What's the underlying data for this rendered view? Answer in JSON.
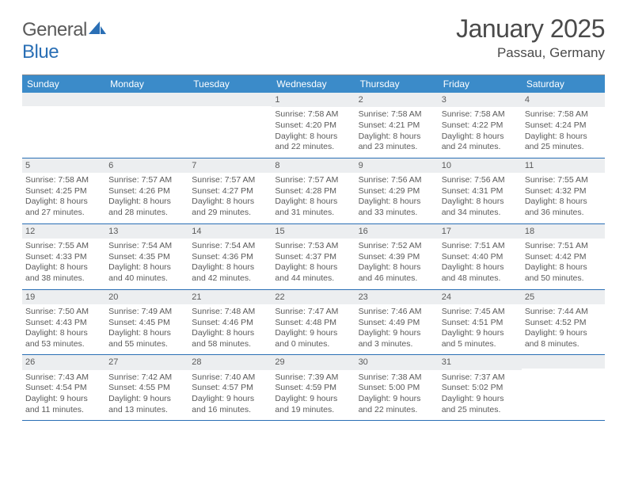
{
  "logo": {
    "text1": "General",
    "text2": "Blue"
  },
  "title": "January 2025",
  "location": "Passau, Germany",
  "colors": {
    "header_bg": "#3b8bc9",
    "header_text": "#ffffff",
    "rule": "#2a6fb5",
    "daynum_bg": "#eceef0",
    "text": "#5a5a5a",
    "logo_blue": "#2a6fb5"
  },
  "day_headers": [
    "Sunday",
    "Monday",
    "Tuesday",
    "Wednesday",
    "Thursday",
    "Friday",
    "Saturday"
  ],
  "weeks": [
    [
      null,
      null,
      null,
      {
        "n": "1",
        "sr": "7:58 AM",
        "ss": "4:20 PM",
        "dh": "8",
        "dm": "22"
      },
      {
        "n": "2",
        "sr": "7:58 AM",
        "ss": "4:21 PM",
        "dh": "8",
        "dm": "23"
      },
      {
        "n": "3",
        "sr": "7:58 AM",
        "ss": "4:22 PM",
        "dh": "8",
        "dm": "24"
      },
      {
        "n": "4",
        "sr": "7:58 AM",
        "ss": "4:24 PM",
        "dh": "8",
        "dm": "25"
      }
    ],
    [
      {
        "n": "5",
        "sr": "7:58 AM",
        "ss": "4:25 PM",
        "dh": "8",
        "dm": "27"
      },
      {
        "n": "6",
        "sr": "7:57 AM",
        "ss": "4:26 PM",
        "dh": "8",
        "dm": "28"
      },
      {
        "n": "7",
        "sr": "7:57 AM",
        "ss": "4:27 PM",
        "dh": "8",
        "dm": "29"
      },
      {
        "n": "8",
        "sr": "7:57 AM",
        "ss": "4:28 PM",
        "dh": "8",
        "dm": "31"
      },
      {
        "n": "9",
        "sr": "7:56 AM",
        "ss": "4:29 PM",
        "dh": "8",
        "dm": "33"
      },
      {
        "n": "10",
        "sr": "7:56 AM",
        "ss": "4:31 PM",
        "dh": "8",
        "dm": "34"
      },
      {
        "n": "11",
        "sr": "7:55 AM",
        "ss": "4:32 PM",
        "dh": "8",
        "dm": "36"
      }
    ],
    [
      {
        "n": "12",
        "sr": "7:55 AM",
        "ss": "4:33 PM",
        "dh": "8",
        "dm": "38"
      },
      {
        "n": "13",
        "sr": "7:54 AM",
        "ss": "4:35 PM",
        "dh": "8",
        "dm": "40"
      },
      {
        "n": "14",
        "sr": "7:54 AM",
        "ss": "4:36 PM",
        "dh": "8",
        "dm": "42"
      },
      {
        "n": "15",
        "sr": "7:53 AM",
        "ss": "4:37 PM",
        "dh": "8",
        "dm": "44"
      },
      {
        "n": "16",
        "sr": "7:52 AM",
        "ss": "4:39 PM",
        "dh": "8",
        "dm": "46"
      },
      {
        "n": "17",
        "sr": "7:51 AM",
        "ss": "4:40 PM",
        "dh": "8",
        "dm": "48"
      },
      {
        "n": "18",
        "sr": "7:51 AM",
        "ss": "4:42 PM",
        "dh": "8",
        "dm": "50"
      }
    ],
    [
      {
        "n": "19",
        "sr": "7:50 AM",
        "ss": "4:43 PM",
        "dh": "8",
        "dm": "53"
      },
      {
        "n": "20",
        "sr": "7:49 AM",
        "ss": "4:45 PM",
        "dh": "8",
        "dm": "55"
      },
      {
        "n": "21",
        "sr": "7:48 AM",
        "ss": "4:46 PM",
        "dh": "8",
        "dm": "58"
      },
      {
        "n": "22",
        "sr": "7:47 AM",
        "ss": "4:48 PM",
        "dh": "9",
        "dm": "0"
      },
      {
        "n": "23",
        "sr": "7:46 AM",
        "ss": "4:49 PM",
        "dh": "9",
        "dm": "3"
      },
      {
        "n": "24",
        "sr": "7:45 AM",
        "ss": "4:51 PM",
        "dh": "9",
        "dm": "5"
      },
      {
        "n": "25",
        "sr": "7:44 AM",
        "ss": "4:52 PM",
        "dh": "9",
        "dm": "8"
      }
    ],
    [
      {
        "n": "26",
        "sr": "7:43 AM",
        "ss": "4:54 PM",
        "dh": "9",
        "dm": "11"
      },
      {
        "n": "27",
        "sr": "7:42 AM",
        "ss": "4:55 PM",
        "dh": "9",
        "dm": "13"
      },
      {
        "n": "28",
        "sr": "7:40 AM",
        "ss": "4:57 PM",
        "dh": "9",
        "dm": "16"
      },
      {
        "n": "29",
        "sr": "7:39 AM",
        "ss": "4:59 PM",
        "dh": "9",
        "dm": "19"
      },
      {
        "n": "30",
        "sr": "7:38 AM",
        "ss": "5:00 PM",
        "dh": "9",
        "dm": "22"
      },
      {
        "n": "31",
        "sr": "7:37 AM",
        "ss": "5:02 PM",
        "dh": "9",
        "dm": "25"
      },
      null
    ]
  ]
}
